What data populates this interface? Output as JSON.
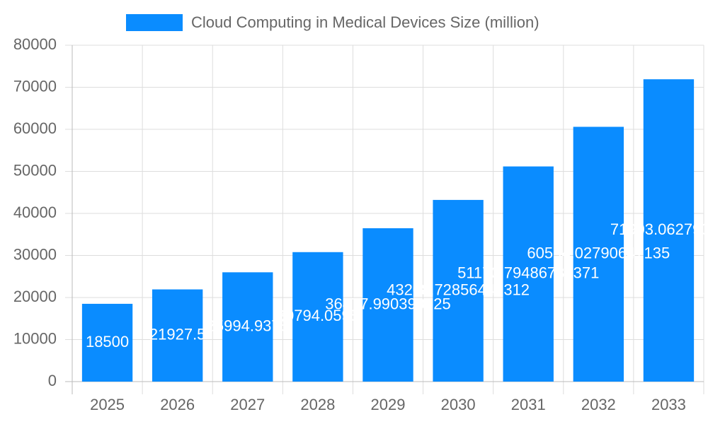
{
  "chart_data": {
    "type": "bar",
    "categories": [
      "2025",
      "2026",
      "2027",
      "2028",
      "2029",
      "2030",
      "2031",
      "2032",
      "2033"
    ],
    "series": [
      {
        "name": "Cloud Computing in Medical Devices Size (million)",
        "color": "#0a8cff",
        "values": [
          18500,
          21927.5,
          25994.9375,
          30794.0595,
          36477.990390625,
          43208.72856445312,
          51170.79486785371,
          60594.02790647135,
          71903.06279357
        ]
      }
    ],
    "ylim": [
      0,
      80000
    ],
    "yticks": [
      0,
      10000,
      20000,
      30000,
      40000,
      50000,
      60000,
      70000,
      80000
    ],
    "grid": true,
    "legend": "top"
  }
}
